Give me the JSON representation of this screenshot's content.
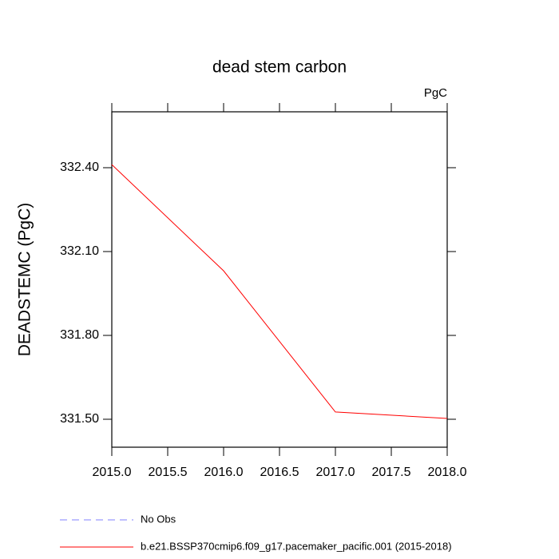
{
  "chart_data": {
    "type": "line",
    "title": "dead stem carbon",
    "units": "PgC",
    "y_label": "DEADSTEMC  (PgC)",
    "x": [
      2015,
      2016,
      2017,
      2018
    ],
    "xlim": [
      2015,
      2018
    ],
    "xticks": [
      {
        "value": 2015,
        "label": "2015.0"
      },
      {
        "value": 2015.5,
        "label": "2015.5"
      },
      {
        "value": 2016,
        "label": "2016.0"
      },
      {
        "value": 2016.5,
        "label": "2016.5"
      },
      {
        "value": 2017,
        "label": "2017.0"
      },
      {
        "value": 2017.5,
        "label": "2017.5"
      },
      {
        "value": 2018,
        "label": "2018.0"
      }
    ],
    "ylim": [
      331.4,
      332.6
    ],
    "yticks": [
      {
        "value": 331.5,
        "label": "331.50"
      },
      {
        "value": 331.8,
        "label": "331.80"
      },
      {
        "value": 332.1,
        "label": "332.10"
      },
      {
        "value": 332.4,
        "label": "332.40"
      }
    ],
    "series": [
      {
        "name": "b.e21.BSSP370cmip6.f09_g17.pacemaker_pacific.001 (2015-2018)",
        "color": "#ff0000",
        "values": [
          332.411,
          332.031,
          331.526,
          331.503
        ]
      }
    ],
    "legend": [
      {
        "name": "No Obs",
        "color": "#8080ff",
        "dashed": true
      },
      {
        "name": "b.e21.BSSP370cmip6.f09_g17.pacemaker_pacific.001 (2015-2018)",
        "color": "#ff0000",
        "dashed": false
      }
    ]
  }
}
